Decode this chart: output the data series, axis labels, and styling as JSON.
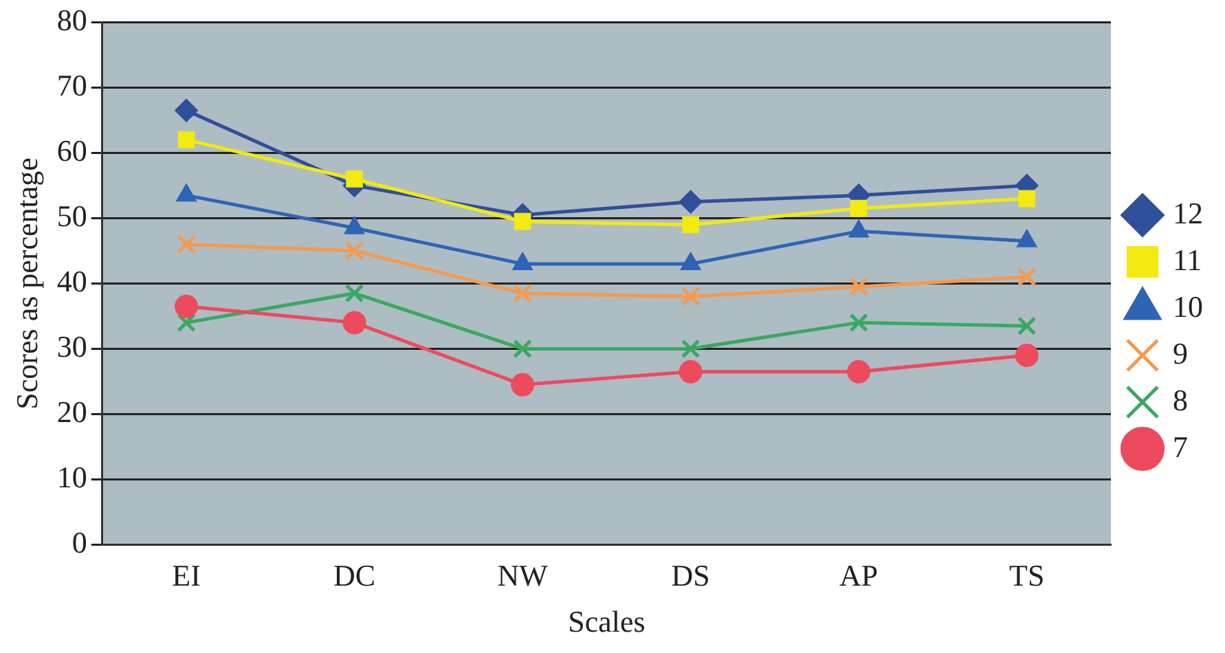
{
  "chart_data": {
    "type": "line",
    "xlabel": "Scales",
    "ylabel": "Scores as percentage",
    "categories": [
      "EI",
      "DC",
      "NW",
      "DS",
      "AP",
      "TS"
    ],
    "ylim": [
      0,
      80
    ],
    "yticks": [
      0,
      10,
      20,
      30,
      40,
      50,
      60,
      70,
      80
    ],
    "grid": "y",
    "legend": "right",
    "line_style": "solid",
    "series": [
      {
        "name": "12",
        "color": "#2f4f9a",
        "marker": "diamond",
        "values": [
          66.5,
          55,
          50.5,
          52.5,
          53.5,
          55
        ]
      },
      {
        "name": "11",
        "color": "#f2ea10",
        "marker": "square",
        "values": [
          62,
          56,
          49.5,
          49,
          51.5,
          53
        ]
      },
      {
        "name": "10",
        "color": "#2e64b4",
        "marker": "triangle",
        "values": [
          53.5,
          48.5,
          43,
          43,
          48,
          46.5
        ]
      },
      {
        "name": "9",
        "color": "#f59a4e",
        "marker": "cross",
        "values": [
          46,
          45,
          38.5,
          38,
          39.5,
          41
        ]
      },
      {
        "name": "8",
        "color": "#3aa860",
        "marker": "cross",
        "values": [
          34,
          38.5,
          30,
          30,
          34,
          33.5
        ]
      },
      {
        "name": "7",
        "color": "#ee4a5e",
        "marker": "circle",
        "values": [
          36.5,
          34,
          24.5,
          26.5,
          26.5,
          29
        ]
      }
    ]
  }
}
